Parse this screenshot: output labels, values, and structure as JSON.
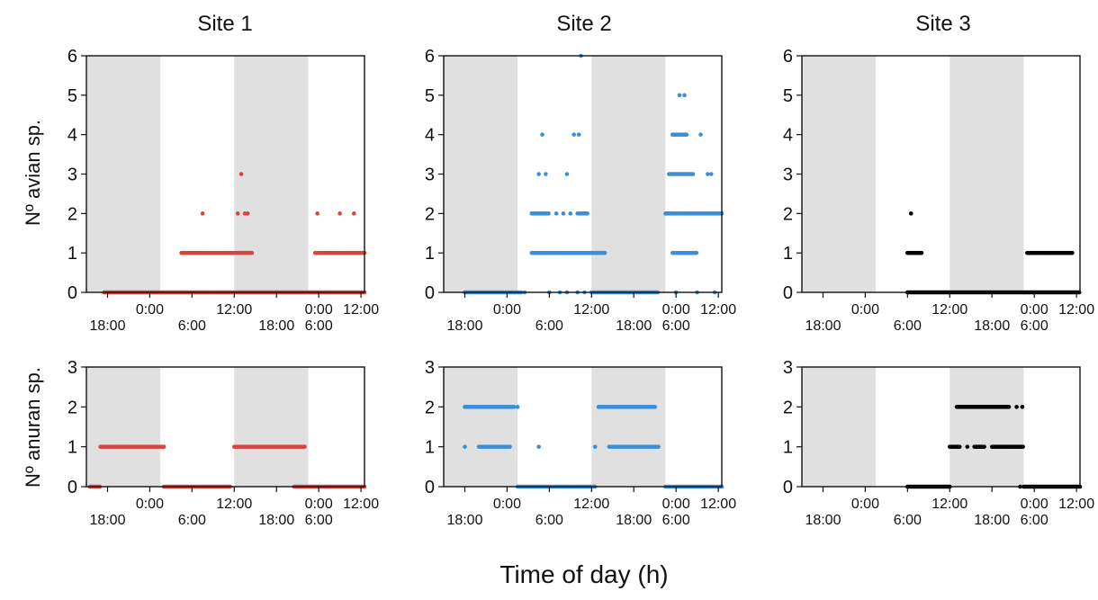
{
  "figure": {
    "column_titles": [
      "Site 1",
      "Site 2",
      "Site 3"
    ],
    "row_labels": [
      "Nº avian sp.",
      "Nº anuran sp."
    ],
    "x_label": "Time of day (h)"
  },
  "colors": {
    "site1": "#d64541",
    "site2": "#3b8fd9",
    "site3": "#000000",
    "night_band": "#e0e0e0"
  },
  "chart_data": [
    {
      "type": "scatter",
      "site": "Site 1",
      "row": "avian",
      "ylabel": "Nº avian sp.",
      "ylim": [
        0,
        6
      ],
      "yticks": [
        0,
        1,
        2,
        3,
        4,
        5,
        6
      ],
      "xlim_hours": [
        -27,
        12.5
      ],
      "xticks_upper": [
        "0:00",
        "12:00",
        "0:00",
        "12:00"
      ],
      "xticks_lower": [
        "18:00",
        "6:00",
        "18:00",
        "6:00"
      ],
      "night_bands_hours": [
        [
          -27,
          -16.5
        ],
        [
          -6,
          4.5
        ]
      ],
      "segments": [
        {
          "x": [
            -24.5,
            12.5
          ],
          "y": 0
        },
        {
          "x": [
            -13.5,
            -3.5
          ],
          "y": 1
        },
        {
          "x": [
            5.5,
            12.5
          ],
          "y": 1
        }
      ],
      "points": [
        {
          "x": -10.5,
          "y": 2
        },
        {
          "x": -5.5,
          "y": 2
        },
        {
          "x": -4.5,
          "y": 2
        },
        {
          "x": -4.1,
          "y": 2
        },
        {
          "x": -5.0,
          "y": 3
        },
        {
          "x": 5.8,
          "y": 2
        },
        {
          "x": 9.0,
          "y": 2
        },
        {
          "x": 11.0,
          "y": 2
        }
      ],
      "grid": false,
      "legend": "none"
    },
    {
      "type": "scatter",
      "site": "Site 2",
      "row": "avian",
      "ylabel": "",
      "ylim": [
        0,
        6
      ],
      "yticks": [
        0,
        1,
        2,
        3,
        4,
        5,
        6
      ],
      "xlim_hours": [
        -27,
        12.5
      ],
      "xticks_upper": [
        "0:00",
        "12:00",
        "0:00",
        "12:00"
      ],
      "xticks_lower": [
        "18:00",
        "6:00",
        "18:00",
        "6:00"
      ],
      "night_bands_hours": [
        [
          -27,
          -16.5
        ],
        [
          -6,
          4.5
        ]
      ],
      "segments": [
        {
          "x": [
            -24.0,
            -16.0
          ],
          "y": 0
        },
        {
          "x": [
            -6.0,
            3.5
          ],
          "y": 0
        },
        {
          "x": [
            -14.5,
            -4.0
          ],
          "y": 1
        },
        {
          "x": [
            -14.5,
            -12.0
          ],
          "y": 2
        },
        {
          "x": [
            -8.0,
            -6.5
          ],
          "y": 2
        },
        {
          "x": [
            4.5,
            12.5
          ],
          "y": 2
        },
        {
          "x": [
            5.5,
            9.0
          ],
          "y": 1
        },
        {
          "x": [
            5.0,
            8.5
          ],
          "y": 3
        },
        {
          "x": [
            5.5,
            7.5
          ],
          "y": 4
        }
      ],
      "points": [
        {
          "x": -13.5,
          "y": 3
        },
        {
          "x": -12.5,
          "y": 3
        },
        {
          "x": -9.5,
          "y": 3
        },
        {
          "x": -13.0,
          "y": 4
        },
        {
          "x": -8.5,
          "y": 4
        },
        {
          "x": -7.8,
          "y": 4
        },
        {
          "x": -7.5,
          "y": 6
        },
        {
          "x": 6.5,
          "y": 5
        },
        {
          "x": 7.2,
          "y": 5
        },
        {
          "x": 9.5,
          "y": 4
        },
        {
          "x": 10.5,
          "y": 3
        },
        {
          "x": 11.0,
          "y": 3
        },
        {
          "x": -11.0,
          "y": 2
        },
        {
          "x": -10.0,
          "y": 2
        },
        {
          "x": -9.0,
          "y": 2
        },
        {
          "x": -15.5,
          "y": 0
        },
        {
          "x": -12.0,
          "y": 0
        },
        {
          "x": -10.5,
          "y": 0
        },
        {
          "x": -9.5,
          "y": 0
        },
        {
          "x": -8.0,
          "y": 0
        },
        {
          "x": -7.0,
          "y": 0
        },
        {
          "x": 6.0,
          "y": 0
        },
        {
          "x": 9.0,
          "y": 0
        },
        {
          "x": 11.5,
          "y": 0
        }
      ],
      "grid": false,
      "legend": "none"
    },
    {
      "type": "scatter",
      "site": "Site 3",
      "row": "avian",
      "ylabel": "",
      "ylim": [
        0,
        6
      ],
      "yticks": [
        0,
        1,
        2,
        3,
        4,
        5,
        6
      ],
      "xlim_hours": [
        -27,
        12.5
      ],
      "xticks_upper": [
        "0:00",
        "12:00",
        "0:00",
        "12:00"
      ],
      "xticks_lower": [
        "18:00",
        "6:00",
        "18:00",
        "6:00"
      ],
      "night_bands_hours": [
        [
          -27,
          -16.5
        ],
        [
          -6,
          4.5
        ]
      ],
      "segments": [
        {
          "x": [
            -12.0,
            12.5
          ],
          "y": 0
        },
        {
          "x": [
            -12.0,
            -10.0
          ],
          "y": 1
        },
        {
          "x": [
            5.0,
            11.5
          ],
          "y": 1
        }
      ],
      "points": [
        {
          "x": -11.5,
          "y": 2
        }
      ],
      "grid": false,
      "legend": "none"
    },
    {
      "type": "scatter",
      "site": "Site 1",
      "row": "anuran",
      "ylabel": "Nº anuran sp.",
      "ylim": [
        0,
        3
      ],
      "yticks": [
        0,
        1,
        2,
        3
      ],
      "xlim_hours": [
        -27,
        12.5
      ],
      "xticks_upper": [
        "0:00",
        "12:00",
        "0:00",
        "12:00"
      ],
      "xticks_lower": [
        "18:00",
        "6:00",
        "18:00",
        "6:00"
      ],
      "night_bands_hours": [
        [
          -27,
          -16.5
        ],
        [
          -6,
          4.5
        ]
      ],
      "segments": [
        {
          "x": [
            -26.5,
            -25.0
          ],
          "y": 0
        },
        {
          "x": [
            -25.0,
            -16.0
          ],
          "y": 1
        },
        {
          "x": [
            -16.0,
            -6.5
          ],
          "y": 0
        },
        {
          "x": [
            -6.0,
            4.0
          ],
          "y": 1
        },
        {
          "x": [
            2.5,
            12.5
          ],
          "y": 0
        }
      ],
      "points": [
        {
          "x": 3.5,
          "y": 1
        }
      ],
      "grid": false,
      "legend": "none"
    },
    {
      "type": "scatter",
      "site": "Site 2",
      "row": "anuran",
      "ylabel": "",
      "ylim": [
        0,
        3
      ],
      "yticks": [
        0,
        1,
        2,
        3
      ],
      "xlim_hours": [
        -27,
        12.5
      ],
      "xticks_upper": [
        "0:00",
        "12:00",
        "0:00",
        "12:00"
      ],
      "xticks_lower": [
        "18:00",
        "6:00",
        "18:00",
        "6:00"
      ],
      "night_bands_hours": [
        [
          -27,
          -16.5
        ],
        [
          -6,
          4.5
        ]
      ],
      "segments": [
        {
          "x": [
            -24.0,
            -17.0
          ],
          "y": 2
        },
        {
          "x": [
            -22.0,
            -17.5
          ],
          "y": 1
        },
        {
          "x": [
            -16.5,
            -5.5
          ],
          "y": 0
        },
        {
          "x": [
            -5.0,
            3.0
          ],
          "y": 2
        },
        {
          "x": [
            -3.5,
            3.5
          ],
          "y": 1
        },
        {
          "x": [
            4.5,
            12.5
          ],
          "y": 0
        }
      ],
      "points": [
        {
          "x": -24.0,
          "y": 1
        },
        {
          "x": -13.5,
          "y": 1
        },
        {
          "x": -5.5,
          "y": 1
        },
        {
          "x": -16.5,
          "y": 2
        }
      ],
      "grid": false,
      "legend": "none"
    },
    {
      "type": "scatter",
      "site": "Site 3",
      "row": "anuran",
      "ylabel": "",
      "ylim": [
        0,
        3
      ],
      "yticks": [
        0,
        1,
        2,
        3
      ],
      "xlim_hours": [
        -27,
        12.5
      ],
      "xticks_upper": [
        "0:00",
        "12:00",
        "0:00",
        "12:00"
      ],
      "xticks_lower": [
        "18:00",
        "6:00",
        "18:00",
        "6:00"
      ],
      "night_bands_hours": [
        [
          -27,
          -16.5
        ],
        [
          -6,
          4.5
        ]
      ],
      "segments": [
        {
          "x": [
            -12.0,
            -6.0
          ],
          "y": 0
        },
        {
          "x": [
            -5.0,
            2.5
          ],
          "y": 2
        },
        {
          "x": [
            -6.0,
            -4.5
          ],
          "y": 1
        },
        {
          "x": [
            -2.5,
            -1.0
          ],
          "y": 1
        },
        {
          "x": [
            0.0,
            4.5
          ],
          "y": 1
        },
        {
          "x": [
            4.5,
            12.5
          ],
          "y": 0
        }
      ],
      "points": [
        {
          "x": -3.5,
          "y": 1
        },
        {
          "x": 3.5,
          "y": 2
        },
        {
          "x": 4.3,
          "y": 2
        },
        {
          "x": 4.0,
          "y": 0
        }
      ],
      "grid": false,
      "legend": "none"
    }
  ]
}
